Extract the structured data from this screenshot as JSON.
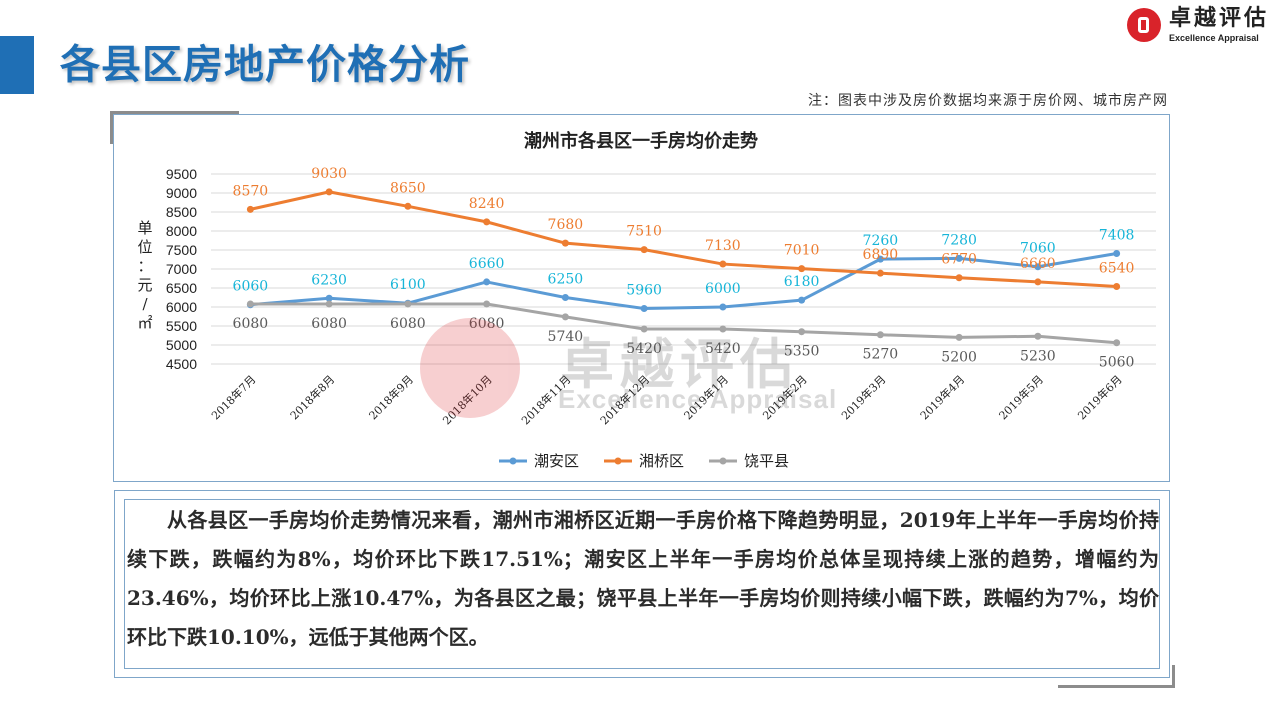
{
  "page": {
    "title": "各县区房地产价格分析",
    "note": "注：图表中涉及房价数据均来源于房价网、城市房产网",
    "logo_cn": "卓越评估",
    "logo_en": "Excellence Appraisal",
    "watermark_cn": "卓越评估",
    "watermark_en": "Excellence Appraisal",
    "analysis": "从各县区一手房均价走势情况来看，潮州市湘桥区近期一手房价格下降趋势明显，2019年上半年一手房均价持续下跌，跌幅约为8%，均价环比下跌17.51%；潮安区上半年一手房均价总体呈现持续上涨的趋势，增幅约为23.46%，均价环比上涨10.47%，为各县区之最；饶平县上半年一手房均价则持续小幅下跌，跌幅约为7%，均价环比下跌10.10%，远低于其他两个区。"
  },
  "chart_data": {
    "type": "line",
    "title": "潮州市各县区一手房均价走势",
    "ylabel": "单位：元/㎡",
    "xlabel": "",
    "ylim": [
      4500,
      9500
    ],
    "yticks": [
      4500,
      5000,
      5500,
      6000,
      6500,
      7000,
      7500,
      8000,
      8500,
      9000,
      9500
    ],
    "grid": true,
    "legend_position": "bottom",
    "categories": [
      "2018年7月",
      "2018年8月",
      "2018年9月",
      "2018年10月",
      "2018年11月",
      "2018年12月",
      "2019年1月",
      "2019年2月",
      "2019年3月",
      "2019年4月",
      "2019年5月",
      "2019年6月"
    ],
    "series": [
      {
        "name": "潮安区",
        "color": "#5b9bd5",
        "label_color": "#17b5d8",
        "values": [
          6060,
          6230,
          6100,
          6660,
          6250,
          5960,
          6000,
          6180,
          7260,
          7280,
          7060,
          7408
        ]
      },
      {
        "name": "湘桥区",
        "color": "#ed7d31",
        "label_color": "#ed7d31",
        "values": [
          8570,
          9030,
          8650,
          8240,
          7680,
          7510,
          7130,
          7010,
          6890,
          6770,
          6660,
          6540
        ]
      },
      {
        "name": "饶平县",
        "color": "#a5a5a5",
        "label_color": "#595959",
        "values": [
          6080,
          6080,
          6080,
          6080,
          5740,
          5420,
          5420,
          5350,
          5270,
          5200,
          5230,
          5060
        ]
      }
    ]
  }
}
